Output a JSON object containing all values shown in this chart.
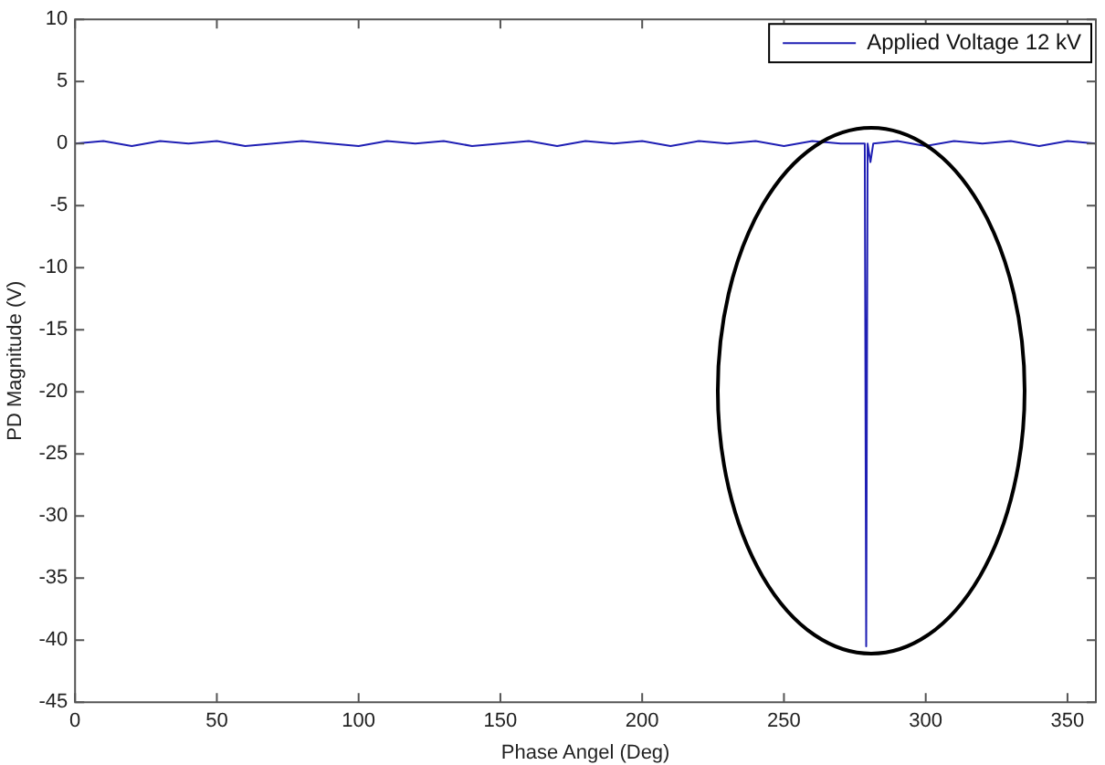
{
  "chart_data": {
    "type": "line",
    "xlabel": "Phase Angel (Deg)",
    "ylabel": "PD Magnitude (V)",
    "x": [
      0,
      10,
      20,
      30,
      40,
      50,
      60,
      70,
      80,
      90,
      100,
      110,
      120,
      130,
      140,
      150,
      160,
      170,
      180,
      190,
      200,
      210,
      220,
      230,
      240,
      250,
      260,
      270,
      278.5,
      279,
      279.5,
      280.5,
      281.5,
      290,
      300,
      310,
      320,
      330,
      340,
      350,
      360
    ],
    "series": [
      {
        "name": "Applied Voltage 12 kV",
        "color": "#1f1fb4",
        "values": [
          0,
          0.2,
          -0.2,
          0.2,
          0,
          0.2,
          -0.2,
          0,
          0.2,
          0,
          -0.2,
          0.2,
          0,
          0.2,
          -0.2,
          0,
          0.2,
          -0.2,
          0.2,
          0,
          0.2,
          -0.2,
          0.2,
          0,
          0.2,
          -0.2,
          0.2,
          0,
          0,
          -40.5,
          0,
          -1.5,
          0,
          0.2,
          -0.2,
          0.2,
          0,
          0.2,
          -0.2,
          0.2,
          0
        ]
      }
    ],
    "xlim": [
      0,
      360
    ],
    "xticks": [
      0,
      50,
      100,
      150,
      200,
      250,
      300,
      350
    ],
    "ylim": [
      -45,
      10
    ],
    "yticks": [
      -45,
      -40,
      -35,
      -30,
      -25,
      -20,
      -15,
      -10,
      -5,
      0,
      5,
      10
    ],
    "grid": false,
    "legend": "top right",
    "marker": "none",
    "line_style": "solid"
  }
}
